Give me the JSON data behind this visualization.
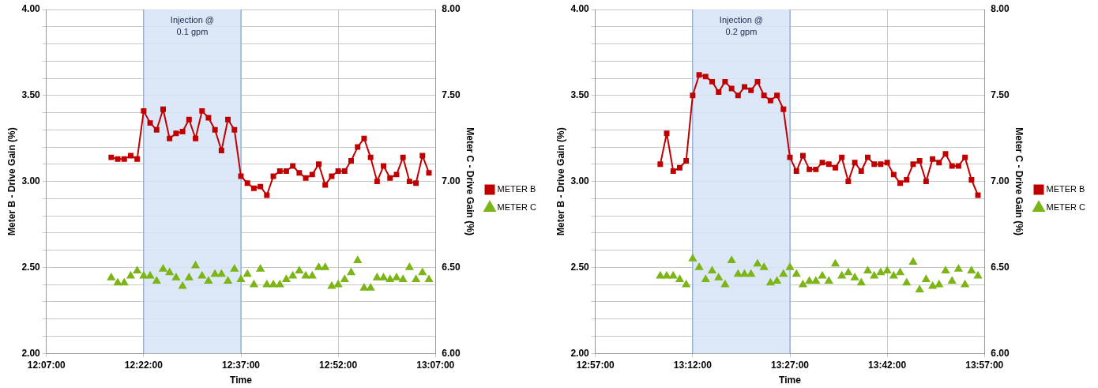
{
  "chart_data": [
    {
      "type": "line",
      "xlabel": "Time",
      "ylabel": "Meter B - Drive Gain (%)",
      "y2label": "Meter C - Drive Gain (%)",
      "xlim": [
        12.1167,
        13.1167
      ],
      "xticks": [
        {
          "value": 12.1167,
          "label": "12:07:00"
        },
        {
          "value": 12.3667,
          "label": "12:22:00"
        },
        {
          "value": 12.6167,
          "label": "12:37:00"
        },
        {
          "value": 12.8667,
          "label": "12:52:00"
        },
        {
          "value": 13.1167,
          "label": "13:07:00"
        }
      ],
      "ylim": [
        2,
        4
      ],
      "yticks": [
        {
          "value": 2,
          "label": "2.00"
        },
        {
          "value": 2.1,
          "label": null
        },
        {
          "value": 2.2,
          "label": null
        },
        {
          "value": 2.3,
          "label": null
        },
        {
          "value": 2.4,
          "label": null
        },
        {
          "value": 2.5,
          "label": "2.50"
        },
        {
          "value": 2.6,
          "label": null
        },
        {
          "value": 2.7,
          "label": null
        },
        {
          "value": 2.8,
          "label": null
        },
        {
          "value": 2.9,
          "label": null
        },
        {
          "value": 3,
          "label": "3.00"
        },
        {
          "value": 3.1,
          "label": null
        },
        {
          "value": 3.2,
          "label": null
        },
        {
          "value": 3.3,
          "label": null
        },
        {
          "value": 3.4,
          "label": null
        },
        {
          "value": 3.5,
          "label": "3.50"
        },
        {
          "value": 3.6,
          "label": null
        },
        {
          "value": 3.7,
          "label": null
        },
        {
          "value": 3.8,
          "label": null
        },
        {
          "value": 3.9,
          "label": null
        },
        {
          "value": 4,
          "label": "4.00"
        }
      ],
      "y2lim": [
        6,
        8
      ],
      "y2ticks": [
        {
          "value": 6,
          "label": "6.00"
        },
        {
          "value": 6.5,
          "label": "6.50"
        },
        {
          "value": 7,
          "label": "7.00"
        },
        {
          "value": 7.5,
          "label": "7.50"
        },
        {
          "value": 8,
          "label": "8.00"
        }
      ],
      "x": [
        12.2833,
        12.3,
        12.3167,
        12.3333,
        12.35,
        12.3667,
        12.3833,
        12.4,
        12.4167,
        12.4333,
        12.45,
        12.4667,
        12.4833,
        12.5,
        12.5167,
        12.5333,
        12.55,
        12.5667,
        12.5833,
        12.6,
        12.6167,
        12.6333,
        12.65,
        12.6667,
        12.6833,
        12.7,
        12.7167,
        12.7333,
        12.75,
        12.7667,
        12.7833,
        12.8,
        12.8167,
        12.8333,
        12.85,
        12.8667,
        12.8833,
        12.9,
        12.9167,
        12.9333,
        12.95,
        12.9667,
        12.9833,
        13,
        13.0167,
        13.0333,
        13.05,
        13.0667,
        13.0833,
        13.1
      ],
      "series": [
        {
          "name": "METER B",
          "type": "line",
          "marker": "square",
          "color": "#c00000",
          "values": [
            3.14,
            3.13,
            3.13,
            3.15,
            3.13,
            3.41,
            3.34,
            3.3,
            3.42,
            3.25,
            3.28,
            3.29,
            3.36,
            3.25,
            3.41,
            3.37,
            3.3,
            3.18,
            3.36,
            3.3,
            3.03,
            2.99,
            2.96,
            2.97,
            2.92,
            3.03,
            3.06,
            3.06,
            3.09,
            3.05,
            3.02,
            3.04,
            3.1,
            2.98,
            3.03,
            3.06,
            3.06,
            3.12,
            3.2,
            3.25,
            3.14,
            3.0,
            3.09,
            3.02,
            3.04,
            3.14,
            3.0,
            2.99,
            3.15,
            3.05
          ]
        },
        {
          "name": "METER C",
          "type": "scatter",
          "marker": "triangle",
          "axis": "y2",
          "color": "#7cb518",
          "values": [
            6.44,
            6.41,
            6.41,
            6.45,
            6.48,
            6.45,
            6.45,
            6.42,
            6.49,
            6.47,
            6.44,
            6.39,
            6.44,
            6.51,
            6.45,
            6.42,
            6.46,
            6.46,
            6.42,
            6.49,
            6.43,
            6.46,
            6.4,
            6.49,
            6.4,
            6.4,
            6.4,
            6.43,
            6.45,
            6.48,
            6.45,
            6.45,
            6.5,
            6.5,
            6.39,
            6.4,
            6.43,
            6.47,
            6.54,
            6.38,
            6.38,
            6.44,
            6.44,
            6.43,
            6.44,
            6.43,
            6.5,
            6.43,
            6.47,
            6.43
          ]
        }
      ],
      "bands": [
        {
          "axis": "x",
          "from": 12.3667,
          "to": 12.6167,
          "label": "Injection @ 0.1 gpm",
          "color": "#d6e4f7"
        }
      ],
      "grid": true,
      "legend": "right",
      "line_style": "solid"
    },
    {
      "type": "line",
      "xlabel": "Time",
      "ylabel": "Meter B - Drive Gain (%)",
      "y2label": "Meter C - Drive Gain (%)",
      "xlim": [
        12.95,
        13.95
      ],
      "xticks": [
        {
          "value": 12.95,
          "label": "12:57:00"
        },
        {
          "value": 13.2,
          "label": "13:12:00"
        },
        {
          "value": 13.45,
          "label": "13:27:00"
        },
        {
          "value": 13.7,
          "label": "13:42:00"
        },
        {
          "value": 13.95,
          "label": "13:57:00"
        }
      ],
      "ylim": [
        2,
        4
      ],
      "yticks": [
        {
          "value": 2,
          "label": "2.00"
        },
        {
          "value": 2.1,
          "label": null
        },
        {
          "value": 2.2,
          "label": null
        },
        {
          "value": 2.3,
          "label": null
        },
        {
          "value": 2.4,
          "label": null
        },
        {
          "value": 2.5,
          "label": "2.50"
        },
        {
          "value": 2.6,
          "label": null
        },
        {
          "value": 2.7,
          "label": null
        },
        {
          "value": 2.8,
          "label": null
        },
        {
          "value": 2.9,
          "label": null
        },
        {
          "value": 3,
          "label": "3.00"
        },
        {
          "value": 3.1,
          "label": null
        },
        {
          "value": 3.2,
          "label": null
        },
        {
          "value": 3.3,
          "label": null
        },
        {
          "value": 3.4,
          "label": null
        },
        {
          "value": 3.5,
          "label": "3.50"
        },
        {
          "value": 3.6,
          "label": null
        },
        {
          "value": 3.7,
          "label": null
        },
        {
          "value": 3.8,
          "label": null
        },
        {
          "value": 3.9,
          "label": null
        },
        {
          "value": 4,
          "label": "4.00"
        }
      ],
      "y2lim": [
        6,
        8
      ],
      "y2ticks": [
        {
          "value": 6,
          "label": "6.00"
        },
        {
          "value": 6.5,
          "label": "6.50"
        },
        {
          "value": 7,
          "label": "7.00"
        },
        {
          "value": 7.5,
          "label": "7.50"
        },
        {
          "value": 8,
          "label": "8.00"
        }
      ],
      "x": [
        13.1167,
        13.1333,
        13.15,
        13.1667,
        13.1833,
        13.2,
        13.2167,
        13.2333,
        13.25,
        13.2667,
        13.2833,
        13.3,
        13.3167,
        13.3333,
        13.35,
        13.3667,
        13.3833,
        13.4,
        13.4167,
        13.4333,
        13.45,
        13.4667,
        13.4833,
        13.5,
        13.5167,
        13.5333,
        13.55,
        13.5667,
        13.5833,
        13.6,
        13.6167,
        13.6333,
        13.65,
        13.6667,
        13.6833,
        13.7,
        13.7167,
        13.7333,
        13.75,
        13.7667,
        13.7833,
        13.8,
        13.8167,
        13.8333,
        13.85,
        13.8667,
        13.8833,
        13.9,
        13.9167,
        13.9333
      ],
      "series": [
        {
          "name": "METER B",
          "type": "line",
          "marker": "square",
          "color": "#c00000",
          "values": [
            3.1,
            3.28,
            3.06,
            3.08,
            3.12,
            3.5,
            3.62,
            3.61,
            3.58,
            3.52,
            3.58,
            3.54,
            3.5,
            3.55,
            3.53,
            3.58,
            3.5,
            3.47,
            3.5,
            3.42,
            3.14,
            3.06,
            3.15,
            3.07,
            3.07,
            3.11,
            3.1,
            3.08,
            3.14,
            3.0,
            3.11,
            3.06,
            3.14,
            3.1,
            3.1,
            3.11,
            3.04,
            2.99,
            3.01,
            3.1,
            3.12,
            3.0,
            3.13,
            3.11,
            3.16,
            3.09,
            3.09,
            3.14,
            3.01,
            2.92
          ]
        },
        {
          "name": "METER C",
          "type": "scatter",
          "marker": "triangle",
          "axis": "y2",
          "color": "#7cb518",
          "values": [
            6.45,
            6.45,
            6.45,
            6.43,
            6.4,
            6.55,
            6.5,
            6.43,
            6.48,
            6.44,
            6.4,
            6.54,
            6.46,
            6.46,
            6.46,
            6.52,
            6.5,
            6.41,
            6.42,
            6.46,
            6.5,
            6.46,
            6.4,
            6.42,
            6.42,
            6.45,
            6.42,
            6.52,
            6.45,
            6.47,
            6.44,
            6.41,
            6.48,
            6.45,
            6.47,
            6.48,
            6.45,
            6.47,
            6.41,
            6.53,
            6.37,
            6.43,
            6.39,
            6.4,
            6.48,
            6.42,
            6.49,
            6.4,
            6.48,
            6.45
          ]
        }
      ],
      "bands": [
        {
          "axis": "x",
          "from": 13.2,
          "to": 13.45,
          "label": "Injection @ 0.2 gpm",
          "color": "#d6e4f7"
        }
      ],
      "grid": true,
      "legend": "right",
      "line_style": "solid"
    }
  ]
}
